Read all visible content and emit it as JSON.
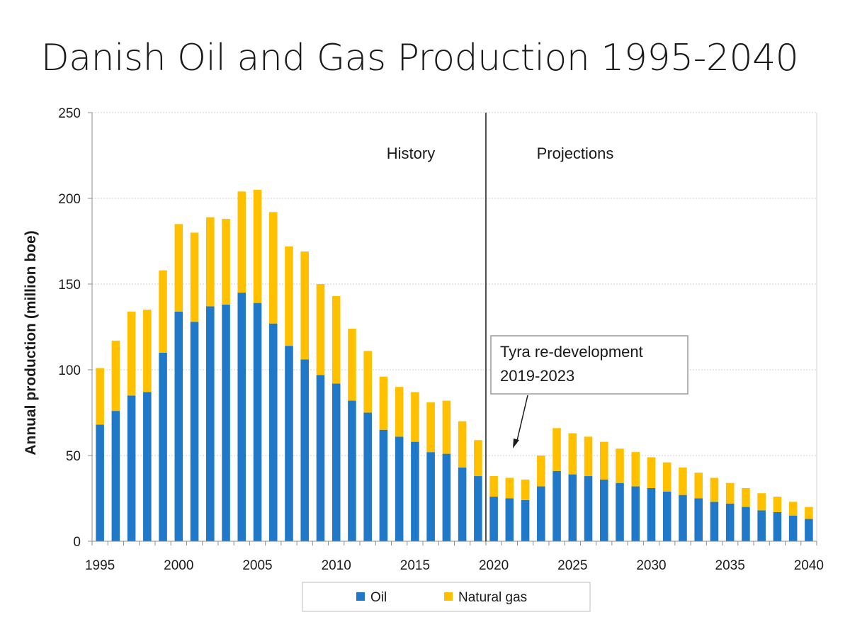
{
  "chart_data": {
    "type": "bar",
    "stacked": true,
    "title": "Danish Oil and Gas Production 1995-2040",
    "ylabel": "Annual production (million boe)",
    "xlabel": "",
    "ylim": [
      0,
      250
    ],
    "yticks": [
      "0",
      "50",
      "100",
      "150",
      "200",
      "250"
    ],
    "xticks": [
      "1995",
      "2000",
      "2005",
      "2010",
      "2015",
      "2020",
      "2025",
      "2030",
      "2035",
      "2040"
    ],
    "grid": true,
    "legend_position": "bottom",
    "divider_year": 2019.5,
    "regions": {
      "left": "History",
      "right": "Projections"
    },
    "annotation": {
      "line1": "Tyra re-development",
      "line2": "2019-2023",
      "target_year": 2021
    },
    "categories": [
      1995,
      1996,
      1997,
      1998,
      1999,
      2000,
      2001,
      2002,
      2003,
      2004,
      2005,
      2006,
      2007,
      2008,
      2009,
      2010,
      2011,
      2012,
      2013,
      2014,
      2015,
      2016,
      2017,
      2018,
      2019,
      2020,
      2021,
      2022,
      2023,
      2024,
      2025,
      2026,
      2027,
      2028,
      2029,
      2030,
      2031,
      2032,
      2033,
      2034,
      2035,
      2036,
      2037,
      2038,
      2039,
      2040
    ],
    "series": [
      {
        "name": "Oil",
        "color": "#1f78c8",
        "values": [
          68,
          76,
          85,
          87,
          110,
          134,
          128,
          137,
          138,
          145,
          139,
          127,
          114,
          106,
          97,
          92,
          82,
          75,
          65,
          61,
          58,
          52,
          51,
          43,
          38,
          26,
          25,
          24,
          32,
          41,
          39,
          38,
          36,
          34,
          32,
          31,
          29,
          27,
          25,
          23,
          22,
          20,
          18,
          17,
          15,
          13
        ]
      },
      {
        "name": "Natural gas",
        "color": "#ffc000",
        "values": [
          33,
          41,
          49,
          48,
          48,
          51,
          52,
          52,
          50,
          59,
          66,
          65,
          58,
          63,
          53,
          51,
          42,
          36,
          31,
          29,
          29,
          29,
          31,
          27,
          21,
          12,
          12,
          12,
          18,
          25,
          24,
          23,
          22,
          20,
          20,
          18,
          17,
          16,
          15,
          14,
          12,
          11,
          10,
          9,
          8,
          7
        ]
      }
    ]
  }
}
